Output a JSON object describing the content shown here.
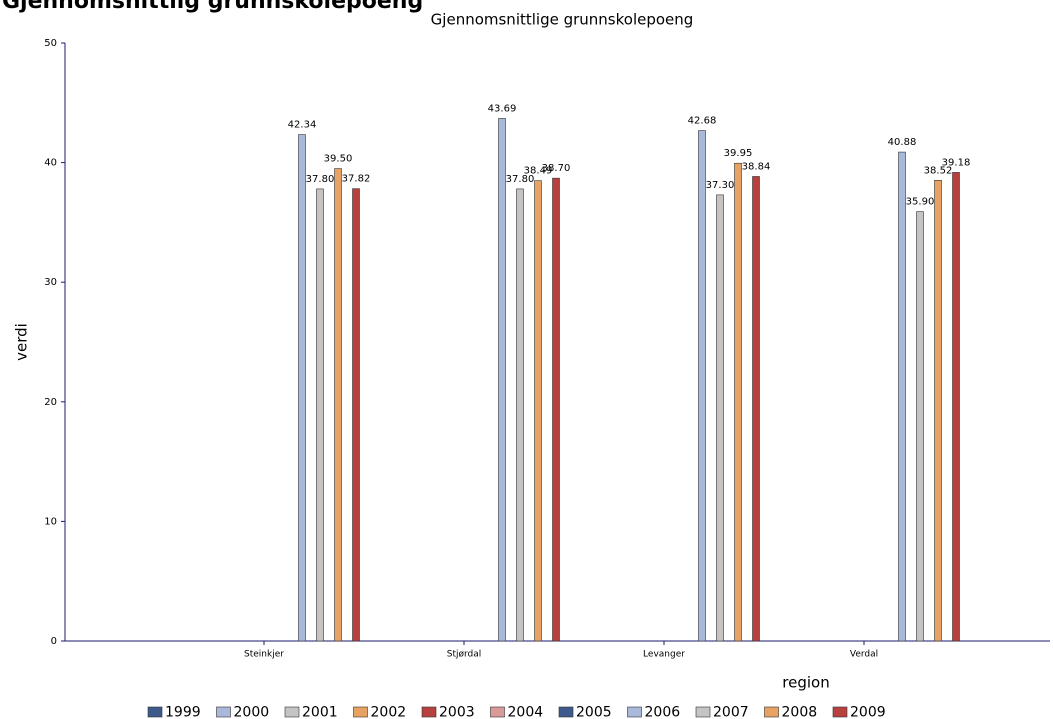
{
  "page_title": "Gjennomsnittlig grunnskolepoeng",
  "chart_data": {
    "type": "bar",
    "title": "Gjennomsnittlige grunnskolepoeng",
    "x_label": "region",
    "y_label": "verdi",
    "categories": [
      "Steinkjer",
      "Stjørdal",
      "Levanger",
      "Verdal"
    ],
    "ylim": [
      0,
      50
    ],
    "yticks": [
      0,
      10,
      20,
      30,
      40,
      50
    ],
    "series": [
      {
        "name": "1999",
        "color": "#3d5a8c",
        "values": [
          null,
          null,
          null,
          null
        ]
      },
      {
        "name": "2000",
        "color": "#a9b9da",
        "values": [
          null,
          null,
          null,
          null
        ]
      },
      {
        "name": "2001",
        "color": "#c4c4c4",
        "values": [
          null,
          null,
          null,
          null
        ]
      },
      {
        "name": "2002",
        "color": "#e8a264",
        "values": [
          null,
          null,
          null,
          null
        ]
      },
      {
        "name": "2003",
        "color": "#b8413f",
        "values": [
          null,
          null,
          null,
          null
        ]
      },
      {
        "name": "2004",
        "color": "#d99a98",
        "values": [
          null,
          null,
          null,
          null
        ]
      },
      {
        "name": "2005",
        "color": "#3d5a8c",
        "values": [
          null,
          null,
          null,
          null
        ]
      },
      {
        "name": "2006",
        "color": "#a9b9da",
        "values": [
          42.34,
          43.69,
          42.68,
          40.88
        ],
        "value_labels": [
          "42.34",
          "43.69",
          "42.68",
          "40.88"
        ]
      },
      {
        "name": "2007",
        "color": "#c4c4c4",
        "values": [
          37.8,
          37.8,
          37.3,
          35.9
        ],
        "value_labels": [
          "37.80",
          "37.80",
          "37.30",
          "35.90"
        ]
      },
      {
        "name": "2008",
        "color": "#e8a264",
        "values": [
          39.5,
          38.49,
          39.95,
          38.52
        ],
        "value_labels": [
          "39.50",
          "38.49",
          "39.95",
          "38.52"
        ]
      },
      {
        "name": "2009",
        "color": "#b8413f",
        "values": [
          37.82,
          38.7,
          38.84,
          39.18
        ],
        "value_labels": [
          "37.82",
          "38.70",
          "38.84",
          "39.18"
        ]
      }
    ]
  }
}
